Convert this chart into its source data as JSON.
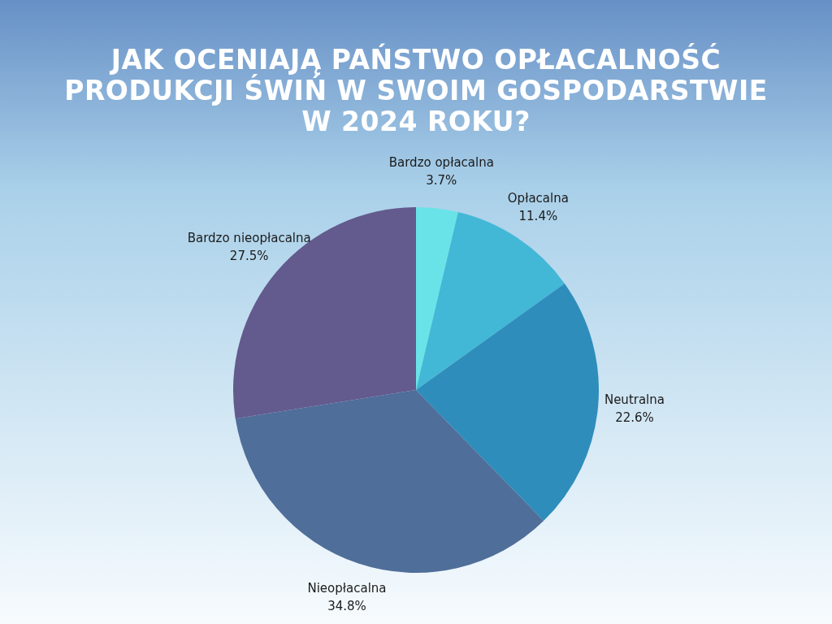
{
  "chart_data": {
    "type": "pie",
    "title": "JAK OCENIAJĄ PAŃSTWO OPŁACALNOŚĆ PRODUKCJI ŚWIŃ W SWOIM GOSPODARSTWIE W 2024 ROKU?",
    "categories": [
      "Bardzo opłacalna",
      "Opłacalna",
      "Neutralna",
      "Nieopłacalna",
      "Bardzo nieopłacalna"
    ],
    "values": [
      3.7,
      11.4,
      22.6,
      34.8,
      27.5
    ],
    "value_labels": [
      "3.7%",
      "11.4%",
      "22.6%",
      "34.8%",
      "27.5%"
    ],
    "colors": [
      "#6ae3e8",
      "#42b8d6",
      "#2e8dbb",
      "#4f6e99",
      "#635a8e"
    ]
  }
}
